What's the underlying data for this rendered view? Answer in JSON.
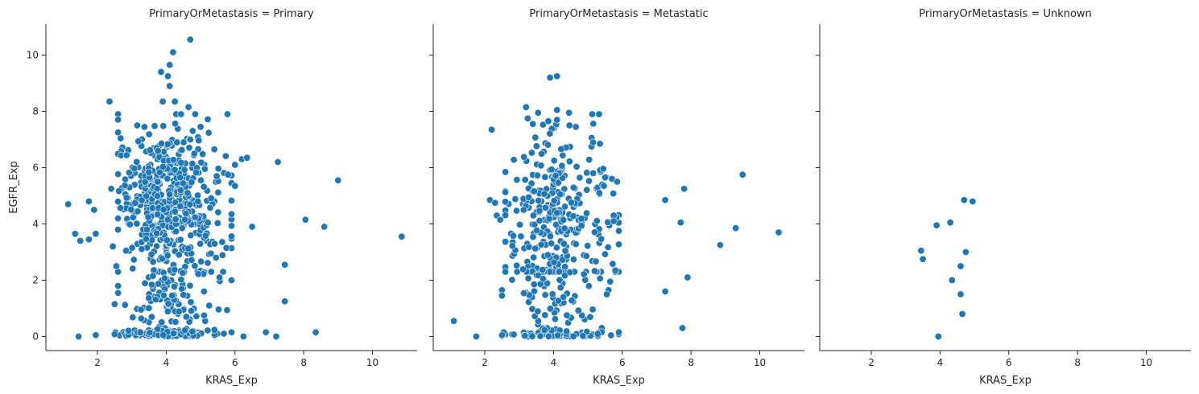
{
  "chart_data": [
    {
      "type": "scatter",
      "title": "PrimaryOrMetastasis = Primary",
      "xlabel": "KRAS_Exp",
      "ylabel": "EGFR_Exp",
      "xlim": [
        0.5,
        11.3
      ],
      "ylim": [
        -0.5,
        11.1
      ],
      "xticks": [
        2,
        4,
        6,
        8,
        10
      ],
      "yticks": [
        0,
        2,
        4,
        6,
        8,
        10
      ],
      "color": "#1f77b4",
      "cluster": {
        "x_mean": 4.05,
        "x_sd": 0.75,
        "y_mean": 4.8,
        "y_sd": 1.3,
        "count": 520,
        "floor_count": 110,
        "mid_count": 90
      },
      "points": [
        {
          "x": 1.15,
          "y": 4.7
        },
        {
          "x": 1.35,
          "y": 3.65
        },
        {
          "x": 1.5,
          "y": 3.4
        },
        {
          "x": 1.45,
          "y": 0.0
        },
        {
          "x": 1.75,
          "y": 3.45
        },
        {
          "x": 1.75,
          "y": 4.8
        },
        {
          "x": 1.9,
          "y": 4.5
        },
        {
          "x": 1.95,
          "y": 3.65
        },
        {
          "x": 1.95,
          "y": 0.05
        },
        {
          "x": 2.35,
          "y": 8.35
        },
        {
          "x": 2.4,
          "y": 5.25
        },
        {
          "x": 2.45,
          "y": 3.2
        },
        {
          "x": 2.5,
          "y": 1.15
        },
        {
          "x": 2.6,
          "y": 1.55
        },
        {
          "x": 2.6,
          "y": 1.8
        },
        {
          "x": 2.55,
          "y": 2.5
        },
        {
          "x": 4.1,
          "y": 9.65
        },
        {
          "x": 4.2,
          "y": 10.1
        },
        {
          "x": 4.7,
          "y": 10.55
        },
        {
          "x": 4.05,
          "y": 9.25
        },
        {
          "x": 3.85,
          "y": 9.4
        },
        {
          "x": 4.1,
          "y": 8.9
        },
        {
          "x": 4.65,
          "y": 8.15
        },
        {
          "x": 4.25,
          "y": 8.35
        },
        {
          "x": 3.9,
          "y": 8.35
        },
        {
          "x": 5.0,
          "y": 7.45
        },
        {
          "x": 4.7,
          "y": 7.0
        },
        {
          "x": 6.0,
          "y": 6.1
        },
        {
          "x": 6.2,
          "y": 6.3
        },
        {
          "x": 6.35,
          "y": 6.35
        },
        {
          "x": 5.4,
          "y": 6.65
        },
        {
          "x": 5.8,
          "y": 5.75
        },
        {
          "x": 6.0,
          "y": 5.35
        },
        {
          "x": 5.9,
          "y": 4.35
        },
        {
          "x": 6.5,
          "y": 3.9
        },
        {
          "x": 5.75,
          "y": 3.15
        },
        {
          "x": 5.9,
          "y": 2.0
        },
        {
          "x": 5.55,
          "y": 2.1
        },
        {
          "x": 5.45,
          "y": 2.8
        },
        {
          "x": 5.3,
          "y": 2.95
        },
        {
          "x": 5.25,
          "y": 1.1
        },
        {
          "x": 5.1,
          "y": 0.75
        },
        {
          "x": 7.25,
          "y": 6.2
        },
        {
          "x": 9.0,
          "y": 5.55
        },
        {
          "x": 8.05,
          "y": 4.15
        },
        {
          "x": 8.6,
          "y": 3.9
        },
        {
          "x": 10.85,
          "y": 3.55
        },
        {
          "x": 7.45,
          "y": 2.55
        },
        {
          "x": 7.45,
          "y": 1.25
        },
        {
          "x": 6.9,
          "y": 0.15
        },
        {
          "x": 7.2,
          "y": 0.0
        },
        {
          "x": 8.35,
          "y": 0.15
        },
        {
          "x": 6.25,
          "y": 0.0
        },
        {
          "x": 5.9,
          "y": 0.15
        }
      ]
    },
    {
      "type": "scatter",
      "title": "PrimaryOrMetastasis = Metastatic",
      "xlabel": "KRAS_Exp",
      "ylabel": "",
      "xlim": [
        0.5,
        11.3
      ],
      "ylim": [
        -0.5,
        11.1
      ],
      "xticks": [
        2,
        4,
        6,
        8,
        10
      ],
      "yticks": [
        0,
        2,
        4,
        6,
        8,
        10
      ],
      "color": "#1f77b4",
      "cluster": {
        "x_mean": 4.1,
        "x_sd": 0.8,
        "y_mean": 4.3,
        "y_sd": 1.5,
        "count": 300,
        "floor_count": 75,
        "mid_count": 60
      },
      "points": [
        {
          "x": 1.1,
          "y": 0.55
        },
        {
          "x": 1.75,
          "y": 0.0
        },
        {
          "x": 2.2,
          "y": 7.35
        },
        {
          "x": 2.15,
          "y": 4.85
        },
        {
          "x": 2.3,
          "y": 4.75
        },
        {
          "x": 2.35,
          "y": 4.3
        },
        {
          "x": 2.45,
          "y": 4.15
        },
        {
          "x": 2.5,
          "y": 1.65
        },
        {
          "x": 2.5,
          "y": 1.45
        },
        {
          "x": 2.55,
          "y": 0.15
        },
        {
          "x": 2.5,
          "y": 0.05
        },
        {
          "x": 3.2,
          "y": 8.15
        },
        {
          "x": 3.55,
          "y": 7.95
        },
        {
          "x": 3.9,
          "y": 9.2
        },
        {
          "x": 4.1,
          "y": 9.25
        },
        {
          "x": 4.1,
          "y": 8.05
        },
        {
          "x": 4.45,
          "y": 7.95
        },
        {
          "x": 4.1,
          "y": 7.7
        },
        {
          "x": 3.85,
          "y": 7.65
        },
        {
          "x": 4.65,
          "y": 7.45
        },
        {
          "x": 3.25,
          "y": 7.75
        },
        {
          "x": 3.4,
          "y": 7.55
        },
        {
          "x": 5.15,
          "y": 6.9
        },
        {
          "x": 5.35,
          "y": 6.85
        },
        {
          "x": 5.5,
          "y": 5.65
        },
        {
          "x": 5.7,
          "y": 5.6
        },
        {
          "x": 5.85,
          "y": 5.5
        },
        {
          "x": 5.75,
          "y": 4.3
        },
        {
          "x": 5.75,
          "y": 4.1
        },
        {
          "x": 5.8,
          "y": 2.35
        },
        {
          "x": 5.65,
          "y": 1.95
        },
        {
          "x": 5.6,
          "y": 1.65
        },
        {
          "x": 5.55,
          "y": 1.5
        },
        {
          "x": 5.9,
          "y": 0.15
        },
        {
          "x": 7.25,
          "y": 4.85
        },
        {
          "x": 7.8,
          "y": 5.25
        },
        {
          "x": 9.5,
          "y": 5.75
        },
        {
          "x": 7.7,
          "y": 4.05
        },
        {
          "x": 9.3,
          "y": 3.85
        },
        {
          "x": 10.55,
          "y": 3.7
        },
        {
          "x": 8.85,
          "y": 3.25
        },
        {
          "x": 7.9,
          "y": 2.1
        },
        {
          "x": 7.25,
          "y": 1.6
        },
        {
          "x": 7.75,
          "y": 0.3
        }
      ]
    },
    {
      "type": "scatter",
      "title": "PrimaryOrMetastasis = Unknown",
      "xlabel": "KRAS_Exp",
      "ylabel": "",
      "xlim": [
        0.5,
        11.3
      ],
      "ylim": [
        -0.5,
        11.1
      ],
      "xticks": [
        2,
        4,
        6,
        8,
        10
      ],
      "yticks": [
        0,
        2,
        4,
        6,
        8,
        10
      ],
      "color": "#1f77b4",
      "cluster": {
        "x_mean": 4.3,
        "x_sd": 0.5,
        "y_mean": 3.0,
        "y_sd": 1.0,
        "count": 0,
        "floor_count": 0,
        "mid_count": 0
      },
      "points": [
        {
          "x": 3.45,
          "y": 3.05
        },
        {
          "x": 3.5,
          "y": 2.75
        },
        {
          "x": 3.9,
          "y": 3.95
        },
        {
          "x": 4.3,
          "y": 4.05
        },
        {
          "x": 4.7,
          "y": 4.85
        },
        {
          "x": 4.95,
          "y": 4.8
        },
        {
          "x": 4.75,
          "y": 3.0
        },
        {
          "x": 4.6,
          "y": 2.5
        },
        {
          "x": 4.35,
          "y": 2.0
        },
        {
          "x": 4.6,
          "y": 1.5
        },
        {
          "x": 4.65,
          "y": 0.8
        },
        {
          "x": 3.95,
          "y": 0.0
        }
      ]
    }
  ]
}
